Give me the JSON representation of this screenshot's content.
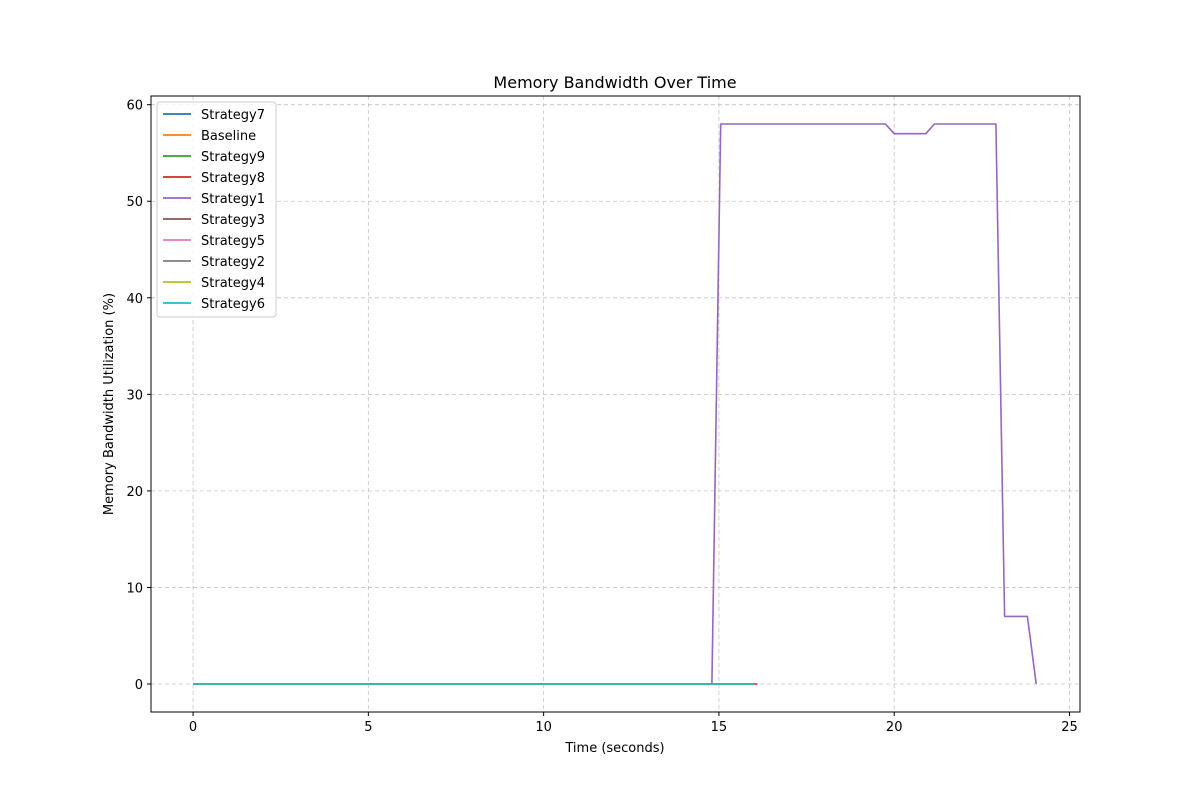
{
  "chart_data": {
    "type": "line",
    "title": "Memory Bandwidth Over Time",
    "xlabel": "Time (seconds)",
    "ylabel": "Memory Bandwidth Utilization (%)",
    "xlim": [
      -1.2,
      25.3
    ],
    "ylim": [
      -2.9,
      60.9
    ],
    "xticks": [
      0,
      5,
      10,
      15,
      20,
      25
    ],
    "yticks": [
      0,
      10,
      20,
      30,
      40,
      50,
      60
    ],
    "grid": true,
    "legend_position": "top-left",
    "series": [
      {
        "name": "Strategy7",
        "color": "#1f77b4",
        "x": [
          0,
          16.0
        ],
        "y": [
          0,
          0
        ]
      },
      {
        "name": "Baseline",
        "color": "#ff7f0e",
        "x": [
          0,
          16.0
        ],
        "y": [
          0,
          0
        ]
      },
      {
        "name": "Strategy9",
        "color": "#2ca02c",
        "x": [
          0,
          16.0
        ],
        "y": [
          0,
          0
        ]
      },
      {
        "name": "Strategy8",
        "color": "#d62728",
        "x": [
          0,
          16.1
        ],
        "y": [
          0,
          0
        ]
      },
      {
        "name": "Strategy1",
        "color": "#9467bd",
        "x": [
          0,
          14.8,
          15.05,
          19.75,
          20.0,
          20.9,
          21.15,
          22.9,
          23.15,
          23.8,
          24.05
        ],
        "y": [
          0,
          0,
          58,
          58,
          57,
          57,
          58,
          58,
          7,
          7,
          0
        ]
      },
      {
        "name": "Strategy3",
        "color": "#8c564b",
        "x": [
          0,
          16.0
        ],
        "y": [
          0,
          0
        ]
      },
      {
        "name": "Strategy5",
        "color": "#e377c2",
        "x": [
          0,
          16.0
        ],
        "y": [
          0,
          0
        ]
      },
      {
        "name": "Strategy2",
        "color": "#7f7f7f",
        "x": [
          0,
          16.0
        ],
        "y": [
          0,
          0
        ]
      },
      {
        "name": "Strategy4",
        "color": "#bcbd22",
        "x": [
          0,
          16.0
        ],
        "y": [
          0,
          0
        ]
      },
      {
        "name": "Strategy6",
        "color": "#17becf",
        "x": [
          0,
          16.0
        ],
        "y": [
          0,
          0
        ]
      }
    ]
  }
}
